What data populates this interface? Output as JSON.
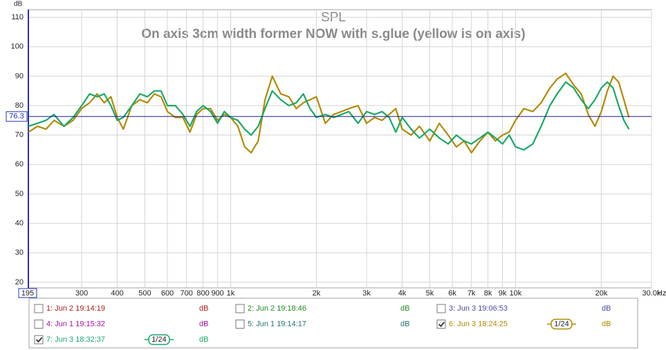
{
  "chart_data": {
    "type": "line",
    "title": "SPL",
    "subtitle": "On axis 3cm width former NOW with s.glue (yellow is on axis)",
    "y_unit": "dB",
    "x_unit": "Hz",
    "xscale": "log",
    "grid": true,
    "xlim": [
      195,
      30000
    ],
    "ylim": [
      18.1,
      112.6
    ],
    "yticks": [
      20,
      30,
      40,
      50,
      60,
      70,
      80,
      90,
      100,
      110
    ],
    "xticks": [
      195,
      300,
      400,
      500,
      600,
      700,
      800,
      900,
      {
        "value": 1000,
        "label": "1k"
      },
      {
        "value": 2000,
        "label": "2k"
      },
      {
        "value": 3000,
        "label": "3k"
      },
      {
        "value": 4000,
        "label": "4k"
      },
      {
        "value": 5000,
        "label": "5k"
      },
      {
        "value": 6000,
        "label": "6k"
      },
      {
        "value": 7000,
        "label": "7k"
      },
      {
        "value": 8000,
        "label": "8k"
      },
      {
        "value": 9000,
        "label": "9k"
      },
      {
        "value": 10000,
        "label": "10k"
      },
      {
        "value": 20000,
        "label": "20k"
      },
      {
        "value": 30000,
        "label": "30.0k"
      }
    ],
    "reference_level": 76.3,
    "x": [
      195,
      210,
      225,
      240,
      260,
      280,
      300,
      320,
      340,
      360,
      380,
      400,
      420,
      450,
      480,
      510,
      540,
      570,
      600,
      640,
      680,
      720,
      760,
      800,
      850,
      900,
      950,
      1000,
      1060,
      1120,
      1180,
      1250,
      1320,
      1400,
      1500,
      1600,
      1700,
      1800,
      1900,
      2000,
      2150,
      2300,
      2450,
      2600,
      2800,
      3000,
      3200,
      3400,
      3600,
      3800,
      4000,
      4300,
      4600,
      5000,
      5400,
      5800,
      6200,
      6600,
      7000,
      7500,
      8000,
      8500,
      9000,
      9500,
      10000,
      10700,
      11500,
      12300,
      13200,
      14000,
      15000,
      16000,
      17000,
      18000,
      19000,
      20000,
      21000,
      22000,
      23000,
      24000,
      25000
    ],
    "hidden_traces": [
      {
        "name": "1: Jun 2 19:14:19",
        "color": "#b01818",
        "unit": "dB",
        "checked": false
      },
      {
        "name": "2: Jun 2 19:18:46",
        "color": "#1f8a1f",
        "unit": "dB",
        "checked": false
      },
      {
        "name": "3: Jun 3 19:06:53",
        "color": "#4a4aa0",
        "unit": "dB",
        "checked": false
      },
      {
        "name": "4: Jun 1 19:15:32",
        "color": "#a010a0",
        "unit": "dB",
        "checked": false
      },
      {
        "name": "5: Jun 1 19:14:17",
        "color": "#1f7070",
        "unit": "dB",
        "checked": false
      }
    ],
    "series": [
      {
        "name": "6: Jun 3 18:24:25",
        "color": "#b08a00",
        "unit": "dB",
        "checked": true,
        "smoothing": "1/24",
        "values": [
          71,
          73,
          72,
          75,
          73,
          75,
          79,
          81,
          84,
          81,
          83,
          76,
          72,
          80,
          82,
          81,
          84,
          83,
          78,
          76,
          76,
          71,
          77,
          79,
          79,
          75,
          77,
          76,
          73,
          66,
          64,
          68,
          82,
          90,
          84,
          83,
          79,
          81,
          82,
          83,
          74,
          77,
          78,
          79,
          80,
          74,
          76,
          75,
          77,
          79,
          72,
          70,
          73,
          68,
          74,
          70,
          66,
          68,
          64,
          68,
          71,
          68,
          70,
          71,
          75,
          79,
          78,
          81,
          86,
          89,
          91,
          87,
          84,
          77,
          73,
          78,
          85,
          90,
          88,
          82,
          76
        ]
      },
      {
        "name": "7: Jun 3 18:32:37",
        "color": "#18a868",
        "unit": "dB",
        "checked": true,
        "smoothing": "1/24",
        "values": [
          73,
          74,
          75,
          77,
          73,
          76,
          80,
          84,
          83,
          84,
          80,
          75,
          76,
          80,
          84,
          83,
          85,
          85,
          80,
          80,
          77,
          73,
          78,
          80,
          78,
          74,
          78,
          76,
          75,
          72,
          70,
          73,
          79,
          85,
          82,
          80,
          81,
          84,
          79,
          76,
          77,
          76,
          77,
          78,
          74,
          78,
          77,
          78,
          76,
          71,
          76,
          72,
          69,
          72,
          69,
          67,
          70,
          68,
          67,
          69,
          71,
          69,
          67,
          70,
          66,
          65,
          67,
          73,
          80,
          84,
          88,
          86,
          82,
          79,
          82,
          86,
          88,
          86,
          80,
          75,
          72
        ]
      }
    ]
  }
}
